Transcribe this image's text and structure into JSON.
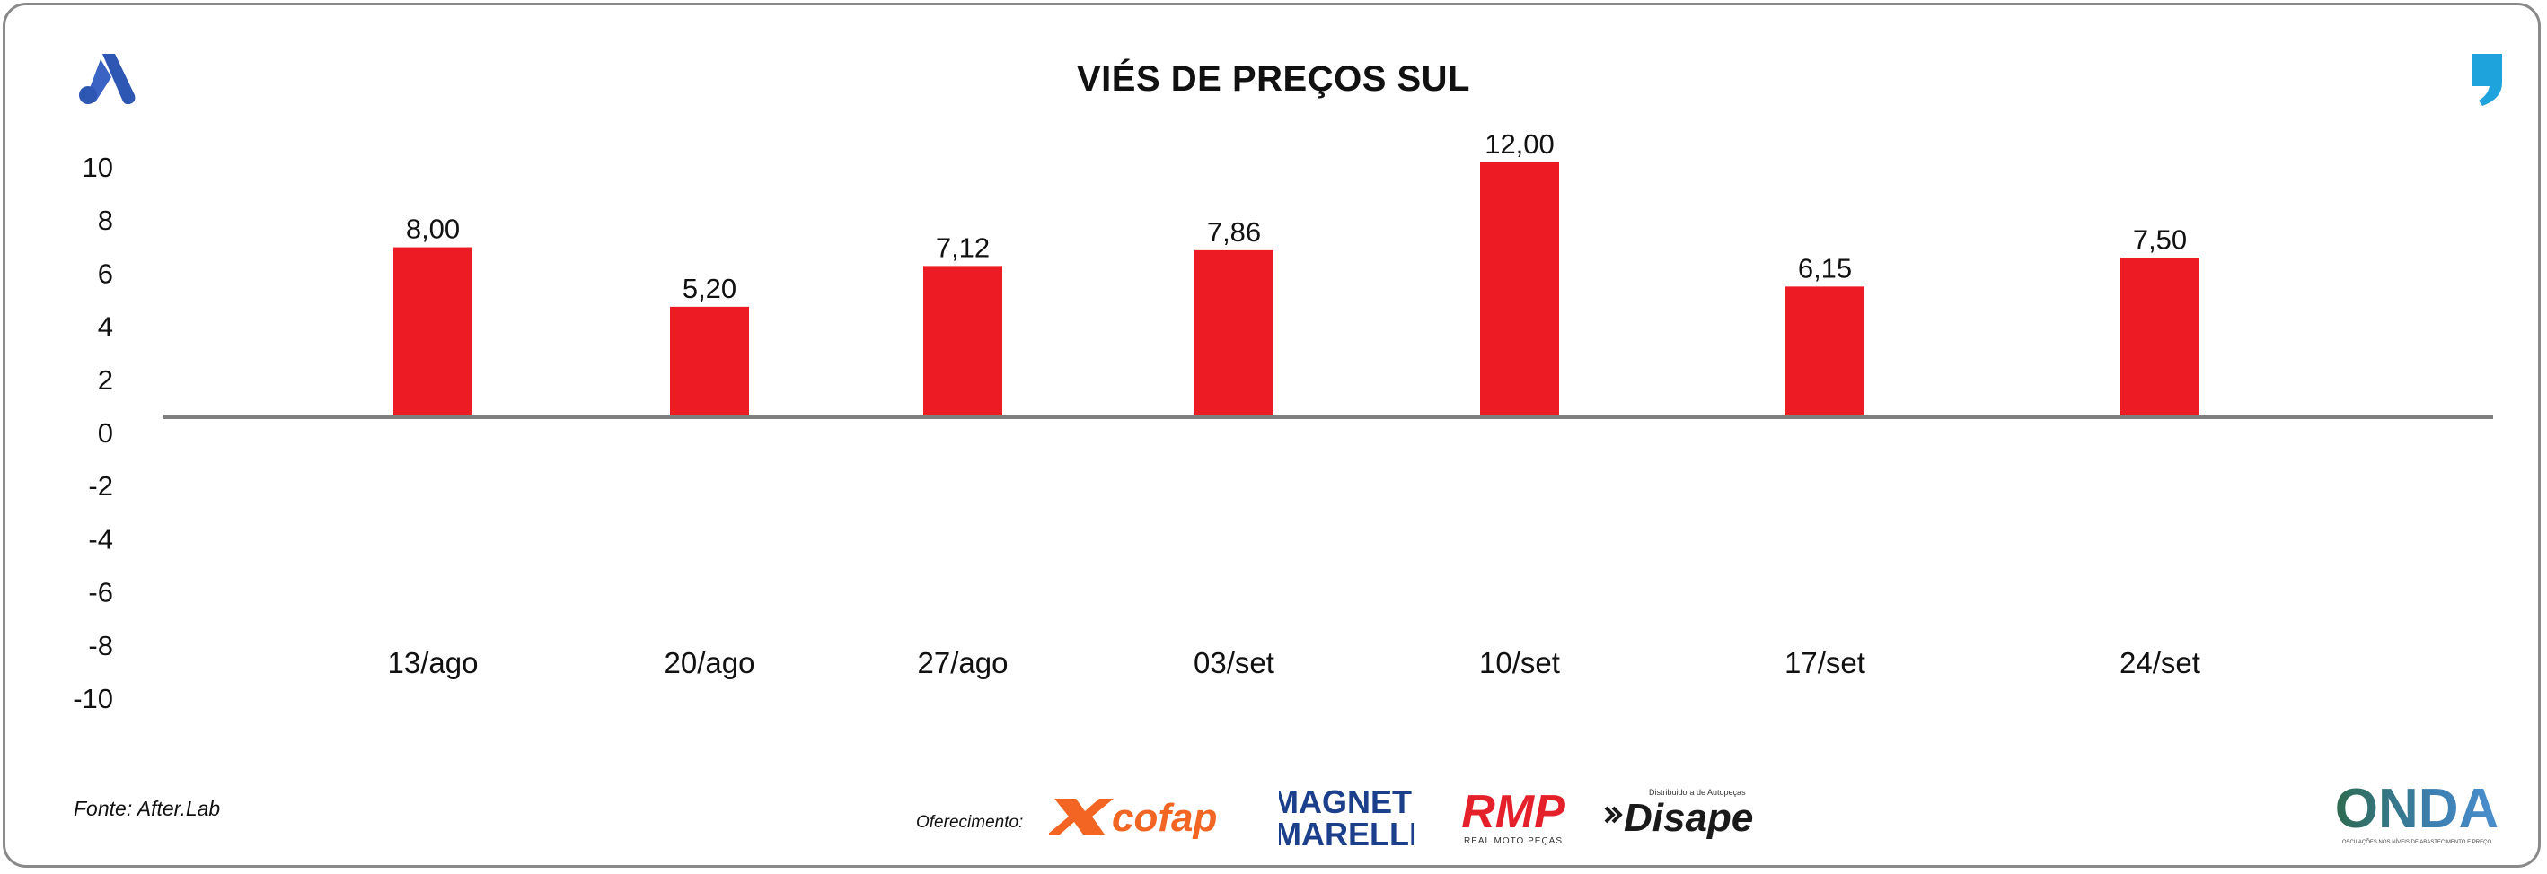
{
  "header": {
    "title": "VIÉS DE PREÇOS SUL",
    "left_logo_icon": "after-lab-a-logo",
    "right_logo_icon": "comma-quote-logo"
  },
  "footer": {
    "source": "Fonte: After.Lab",
    "sponsor_label": "Oferecimento:",
    "sponsors": {
      "cofap": "cofap",
      "magneti_line1": "MAGNETI",
      "magneti_line2": "MARELLI",
      "rmp": "RMP",
      "rmp_sub": "REAL MOTO PEÇAS",
      "disape": "Disape",
      "disape_sub": "Distribuidora de Autopeças",
      "onda": "ONDA",
      "onda_sub": "OSCILAÇÕES NOS NÍVEIS DE ABASTECIMENTO E PREÇO"
    }
  },
  "colors": {
    "bar": "#ED1C24",
    "axis": "#7f7f7f",
    "cofap": "#F26522",
    "magneti": "#1B3F8B",
    "rmp": "#E4202B",
    "disape": "#1a1a1a",
    "onda": "#2E6B4F",
    "brand_blue": "#2E56B3",
    "brand_cyan": "#1FA3DC"
  },
  "chart_data": {
    "type": "bar",
    "title": "VIÉS DE PREÇOS SUL",
    "xlabel": "",
    "ylabel": "",
    "categories": [
      "13/ago",
      "20/ago",
      "27/ago",
      "03/set",
      "10/set",
      "17/set",
      "24/set"
    ],
    "values": [
      8.0,
      5.2,
      7.12,
      7.86,
      12.0,
      6.15,
      7.5
    ],
    "value_labels": [
      "8,00",
      "5,20",
      "7,12",
      "7,86",
      "12,00",
      "6,15",
      "7,50"
    ],
    "y_ticks": [
      "10",
      "8",
      "6",
      "4",
      "2",
      "0",
      "-2",
      "-4",
      "-6",
      "-8",
      "-10"
    ],
    "ylim": [
      -10,
      10
    ],
    "grid": false,
    "legend": "none"
  }
}
